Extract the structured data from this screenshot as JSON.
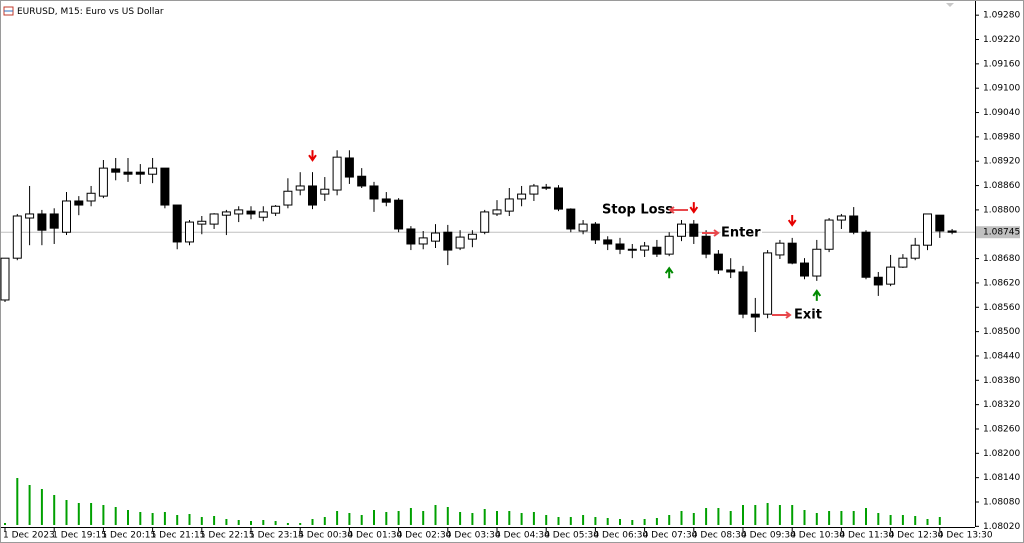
{
  "chart_data": {
    "type": "candlestick",
    "title": "EURUSD, M15:  Euro vs US Dollar",
    "categories": [
      "1 Dec 2023",
      null,
      null,
      null,
      "1 Dec 19:15",
      null,
      null,
      null,
      "1 Dec 20:15",
      null,
      null,
      null,
      "1 Dec 21:15",
      null,
      null,
      null,
      "1 Dec 22:15",
      null,
      null,
      null,
      "1 Dec 23:15",
      null,
      null,
      null,
      "4 Dec 00:30",
      null,
      null,
      null,
      "4 Dec 01:30",
      null,
      null,
      null,
      "4 Dec 02:30",
      null,
      null,
      null,
      "4 Dec 03:30",
      null,
      null,
      null,
      "4 Dec 04:30",
      null,
      null,
      null,
      "4 Dec 05:30",
      null,
      null,
      null,
      "4 Dec 06:30",
      null,
      null,
      null,
      "4 Dec 07:30",
      null,
      null,
      null,
      "4 Dec 08:30",
      null,
      null,
      null,
      "4 Dec 09:30",
      null,
      null,
      null,
      "4 Dec 10:30",
      null,
      null,
      null,
      "4 Dec 11:30",
      null,
      null,
      null,
      "4 Dec 12:30",
      null,
      null,
      null,
      "4 Dec 13:30",
      null
    ],
    "ohlc": [
      [
        1.08578,
        1.08681,
        1.08573,
        1.08681
      ],
      [
        1.08681,
        1.0879,
        1.08676,
        1.08785
      ],
      [
        1.0878,
        1.08859,
        1.08713,
        1.0879
      ],
      [
        1.0879,
        1.088,
        1.08713,
        1.0875
      ],
      [
        1.0879,
        1.08804,
        1.08716,
        1.08755
      ],
      [
        1.08745,
        1.08844,
        1.08738,
        1.08822
      ],
      [
        1.08822,
        1.08834,
        1.08787,
        1.08812
      ],
      [
        1.08822,
        1.08859,
        1.08809,
        1.08841
      ],
      [
        1.08834,
        1.08923,
        1.08829,
        1.08903
      ],
      [
        1.08901,
        1.08928,
        1.08873,
        1.08893
      ],
      [
        1.08893,
        1.08928,
        1.08869,
        1.08888
      ],
      [
        1.08893,
        1.08913,
        1.08864,
        1.08888
      ],
      [
        1.08888,
        1.08928,
        1.08866,
        1.08903
      ],
      [
        1.08903,
        1.08903,
        1.08804,
        1.08812
      ],
      [
        1.08812,
        1.08812,
        1.08703,
        1.08721
      ],
      [
        1.08721,
        1.08775,
        1.08713,
        1.0877
      ],
      [
        1.08765,
        1.08785,
        1.0874,
        1.08772
      ],
      [
        1.08765,
        1.08792,
        1.08753,
        1.0879
      ],
      [
        1.08787,
        1.088,
        1.08738,
        1.08795
      ],
      [
        1.0879,
        1.08809,
        1.0877,
        1.088
      ],
      [
        1.08797,
        1.08809,
        1.08777,
        1.0879
      ],
      [
        1.08782,
        1.08809,
        1.08772,
        1.08795
      ],
      [
        1.08792,
        1.08812,
        1.08785,
        1.08809
      ],
      [
        1.08812,
        1.08878,
        1.08804,
        1.08846
      ],
      [
        1.08849,
        1.08893,
        1.08836,
        1.08859
      ],
      [
        1.08859,
        1.08893,
        1.08802,
        1.08812
      ],
      [
        1.08839,
        1.08881,
        1.08822,
        1.08851
      ],
      [
        1.08849,
        1.08947,
        1.08836,
        1.0893
      ],
      [
        1.08928,
        1.08947,
        1.08864,
        1.08881
      ],
      [
        1.08883,
        1.08903,
        1.08854,
        1.08859
      ],
      [
        1.08859,
        1.08869,
        1.08795,
        1.08827
      ],
      [
        1.08827,
        1.08844,
        1.08809,
        1.08819
      ],
      [
        1.08824,
        1.08829,
        1.08745,
        1.08753
      ],
      [
        1.08753,
        1.0876,
        1.08701,
        1.08716
      ],
      [
        1.08716,
        1.08748,
        1.08703,
        1.08731
      ],
      [
        1.08723,
        1.08765,
        1.08706,
        1.08743
      ],
      [
        1.08745,
        1.08763,
        1.08664,
        1.08701
      ],
      [
        1.08706,
        1.0875,
        1.08701,
        1.08733
      ],
      [
        1.08728,
        1.0875,
        1.08708,
        1.0874
      ],
      [
        1.08745,
        1.088,
        1.0874,
        1.08795
      ],
      [
        1.0879,
        1.08824,
        1.08785,
        1.088
      ],
      [
        1.08797,
        1.08854,
        1.08785,
        1.08827
      ],
      [
        1.08827,
        1.08859,
        1.08809,
        1.08839
      ],
      [
        1.08839,
        1.08864,
        1.08822,
        1.08859
      ],
      [
        1.08856,
        1.08864,
        1.08849,
        1.08854
      ],
      [
        1.08854,
        1.08861,
        1.08797,
        1.08802
      ],
      [
        1.08802,
        1.08804,
        1.08745,
        1.08753
      ],
      [
        1.08748,
        1.08775,
        1.0874,
        1.08765
      ],
      [
        1.08765,
        1.0877,
        1.08716,
        1.08726
      ],
      [
        1.08726,
        1.08735,
        1.08701,
        1.08716
      ],
      [
        1.08716,
        1.08731,
        1.08691,
        1.08703
      ],
      [
        1.08701,
        1.08716,
        1.08681,
        1.08703
      ],
      [
        1.08701,
        1.08721,
        1.08684,
        1.08711
      ],
      [
        1.08708,
        1.08726,
        1.08684,
        1.08691
      ],
      [
        1.08691,
        1.08745,
        1.08686,
        1.08735
      ],
      [
        1.08735,
        1.08775,
        1.08723,
        1.08765
      ],
      [
        1.08765,
        1.08775,
        1.08716,
        1.08735
      ],
      [
        1.08735,
        1.0875,
        1.08681,
        1.08691
      ],
      [
        1.08691,
        1.08701,
        1.08642,
        1.08652
      ],
      [
        1.08652,
        1.08681,
        1.08632,
        1.08647
      ],
      [
        1.08647,
        1.08662,
        1.08533,
        1.08543
      ],
      [
        1.08543,
        1.08583,
        1.08499,
        1.08536
      ],
      [
        1.08543,
        1.08701,
        1.08533,
        1.08694
      ],
      [
        1.08689,
        1.08726,
        1.08679,
        1.08718
      ],
      [
        1.08718,
        1.08731,
        1.08666,
        1.08669
      ],
      [
        1.08669,
        1.08681,
        1.08629,
        1.08637
      ],
      [
        1.08637,
        1.08726,
        1.08625,
        1.08703
      ],
      [
        1.08703,
        1.0878,
        1.08696,
        1.08775
      ],
      [
        1.08775,
        1.0879,
        1.08753,
        1.08785
      ],
      [
        1.08785,
        1.08807,
        1.0874,
        1.08745
      ],
      [
        1.08745,
        1.0875,
        1.08629,
        1.08634
      ],
      [
        1.08634,
        1.08647,
        1.08588,
        1.08615
      ],
      [
        1.08617,
        1.08689,
        1.08612,
        1.08659
      ],
      [
        1.08659,
        1.08691,
        1.08657,
        1.08681
      ],
      [
        1.08681,
        1.08731,
        1.08676,
        1.08713
      ],
      [
        1.08713,
        1.0879,
        1.08701,
        1.0879
      ],
      [
        1.08787,
        1.08787,
        1.08731,
        1.08748
      ],
      [
        1.08748,
        1.08753,
        1.0874,
        1.08745
      ]
    ],
    "volumes": [
      2,
      47,
      40,
      36,
      30,
      25,
      22,
      22,
      20,
      18,
      15,
      13,
      12,
      13,
      10,
      11,
      8,
      9,
      6,
      5,
      4,
      5,
      4,
      2,
      2,
      6,
      8,
      14,
      12,
      10,
      15,
      13,
      14,
      17,
      14,
      20,
      18,
      13,
      12,
      16,
      14,
      14,
      12,
      13,
      10,
      8,
      8,
      10,
      8,
      7,
      6,
      5,
      6,
      7,
      10,
      14,
      12,
      17,
      17,
      14,
      20,
      20,
      22,
      20,
      20,
      15,
      12,
      14,
      14,
      14,
      17,
      12,
      10,
      10,
      9,
      6,
      8,
      0
    ],
    "sell_signals": {
      "color": "#e60000",
      "values": [
        null,
        null,
        null,
        null,
        null,
        null,
        null,
        null,
        null,
        null,
        null,
        null,
        null,
        null,
        null,
        null,
        null,
        null,
        null,
        null,
        null,
        null,
        null,
        null,
        null,
        1.08935,
        null,
        null,
        null,
        null,
        null,
        null,
        null,
        null,
        null,
        null,
        null,
        null,
        null,
        null,
        null,
        null,
        null,
        null,
        null,
        null,
        null,
        null,
        null,
        null,
        null,
        null,
        null,
        null,
        null,
        null,
        1.08807,
        null,
        null,
        null,
        null,
        null,
        null,
        null,
        1.08775,
        null,
        null,
        null,
        null,
        null,
        null,
        null,
        null,
        null,
        null,
        null,
        null,
        null
      ]
    },
    "buy_signals": {
      "color": "#008a00",
      "values": [
        null,
        null,
        null,
        null,
        null,
        null,
        null,
        null,
        null,
        null,
        null,
        null,
        null,
        null,
        null,
        null,
        null,
        null,
        null,
        null,
        null,
        null,
        null,
        null,
        null,
        null,
        null,
        null,
        null,
        null,
        null,
        null,
        null,
        null,
        null,
        null,
        null,
        null,
        null,
        null,
        null,
        null,
        null,
        null,
        null,
        null,
        null,
        null,
        null,
        null,
        null,
        null,
        null,
        null,
        1.08644,
        null,
        null,
        null,
        null,
        null,
        null,
        null,
        null,
        null,
        null,
        null,
        1.08588,
        null,
        null,
        null,
        null,
        null,
        null,
        null,
        null,
        null,
        null,
        null
      ]
    },
    "annotations": [
      {
        "text": "Stop Loss",
        "color": "#e8484c"
      },
      {
        "text": "Enter",
        "color": "#2e9e3a"
      },
      {
        "text": "Exit",
        "color": "#1d4ed8"
      }
    ],
    "bid": {
      "value": 1.08745,
      "label": "1.08745"
    },
    "volume_color": "#00a000",
    "ylim": [
      1.08011,
      1.0931
    ],
    "yticks": [
      {
        "value": 1.0928,
        "label": "1.09280"
      },
      {
        "value": 1.0922,
        "label": "1.09220"
      },
      {
        "value": 1.0916,
        "label": "1.09160"
      },
      {
        "value": 1.091,
        "label": "1.09100"
      },
      {
        "value": 1.0904,
        "label": "1.09040"
      },
      {
        "value": 1.0898,
        "label": "1.08980"
      },
      {
        "value": 1.0892,
        "label": "1.08920"
      },
      {
        "value": 1.0886,
        "label": "1.08860"
      },
      {
        "value": 1.088,
        "label": "1.08800"
      },
      {
        "value": 1.0868,
        "label": "1.08680"
      },
      {
        "value": 1.0862,
        "label": "1.08620"
      },
      {
        "value": 1.0856,
        "label": "1.08560"
      },
      {
        "value": 1.085,
        "label": "1.08500"
      },
      {
        "value": 1.0844,
        "label": "1.08440"
      },
      {
        "value": 1.0838,
        "label": "1.08380"
      },
      {
        "value": 1.0832,
        "label": "1.08320"
      },
      {
        "value": 1.0826,
        "label": "1.08260"
      },
      {
        "value": 1.082,
        "label": "1.08200"
      },
      {
        "value": 1.0814,
        "label": "1.08140"
      },
      {
        "value": 1.0808,
        "label": "1.08080"
      },
      {
        "value": 1.0802,
        "label": "1.08020"
      }
    ]
  }
}
